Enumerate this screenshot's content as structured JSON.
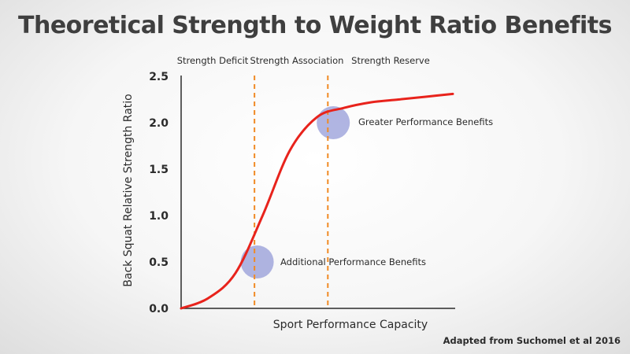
{
  "chart_data": {
    "type": "line",
    "title": "Theoretical Strength to Weight Ratio Benefits",
    "xlabel": "Sport Performance Capacity",
    "ylabel": "Back Squat Relative Strength Ratio",
    "ylim": [
      0,
      2.5
    ],
    "xlim": [
      0,
      10
    ],
    "y_ticks": [
      "0.0",
      "0.5",
      "1.0",
      "1.5",
      "2.0",
      "2.5"
    ],
    "grid": false,
    "series": [
      {
        "color": "#e8231c",
        "x": [
          0,
          1,
          2,
          3,
          4,
          5,
          6,
          7,
          8,
          9,
          10
        ],
        "y": [
          0.0,
          0.11,
          0.38,
          1.0,
          1.7,
          2.06,
          2.16,
          2.22,
          2.25,
          2.28,
          2.31
        ]
      }
    ],
    "zone_boundaries": [
      2.7,
      5.4
    ],
    "zones": [
      "Strength Deficit",
      "Strength Association",
      "Strength Reserve"
    ],
    "annotations": [
      {
        "text": "Additional Performance Benefits",
        "x": 2.8,
        "y": 0.5
      },
      {
        "text": "Greater Performance Benefits",
        "x": 5.6,
        "y": 2.0
      }
    ],
    "source": "Adapted from Suchomel et al 2016"
  },
  "colors": {
    "curve": "#e8231c",
    "dashed_lines": "#f08a24",
    "highlight_circles": "#8f95d6",
    "axes": "#2b2b2b",
    "title": "#3f3f3f"
  }
}
